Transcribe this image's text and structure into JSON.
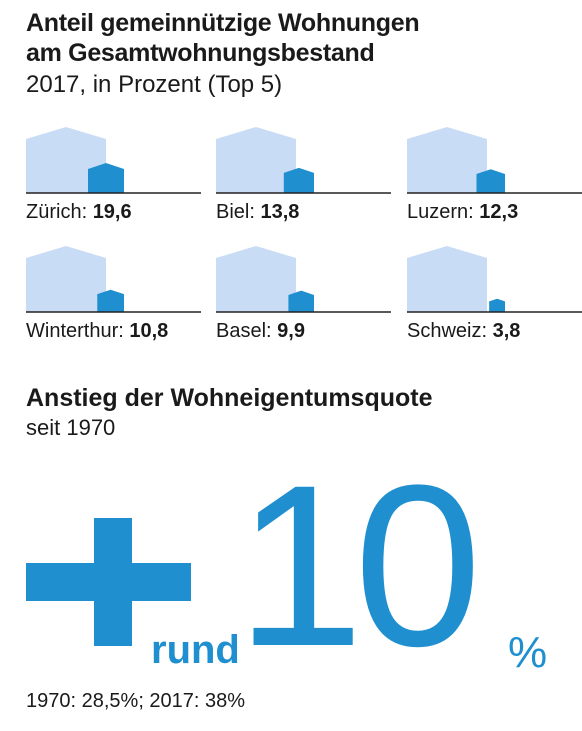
{
  "title": "Anteil gemeinnützige Wohnungen am Gesamtwohnungsbestand",
  "subtitle": "2017, in Prozent (Top 5)",
  "colors": {
    "accent": "#1f8fcf",
    "house_bg": "#c9dcf5",
    "text": "#1a1a1a"
  },
  "chart_data": [
    {
      "type": "bar",
      "title": "Anteil gemeinnützige Wohnungen am Gesamtwohnungsbestand",
      "subtitle": "2017, in Prozent (Top 5)",
      "categories": [
        "Zürich",
        "Biel",
        "Luzern",
        "Winterthur",
        "Basel",
        "Schweiz"
      ],
      "values": [
        19.6,
        13.8,
        12.3,
        10.8,
        9.9,
        3.8
      ],
      "value_labels": [
        "19,6",
        "13,8",
        "12,3",
        "10,8",
        "9,9",
        "3,8"
      ],
      "unit": "%"
    },
    {
      "type": "table",
      "title": "Anstieg der Wohneigentumsquote",
      "subtitle": "seit 1970",
      "headline_prefix": "rund",
      "headline_value": "10",
      "headline_unit": "%",
      "rows": [
        {
          "year": "1970",
          "value": 28.5
        },
        {
          "year": "2017",
          "value": 38
        }
      ]
    }
  ],
  "section2": {
    "title": "Anstieg der Wohneigentumsquote",
    "subtitle": "seit 1970",
    "rund": "rund",
    "big": "10",
    "pct": "%",
    "footnote": "1970: 28,5%; 2017: 38%"
  }
}
